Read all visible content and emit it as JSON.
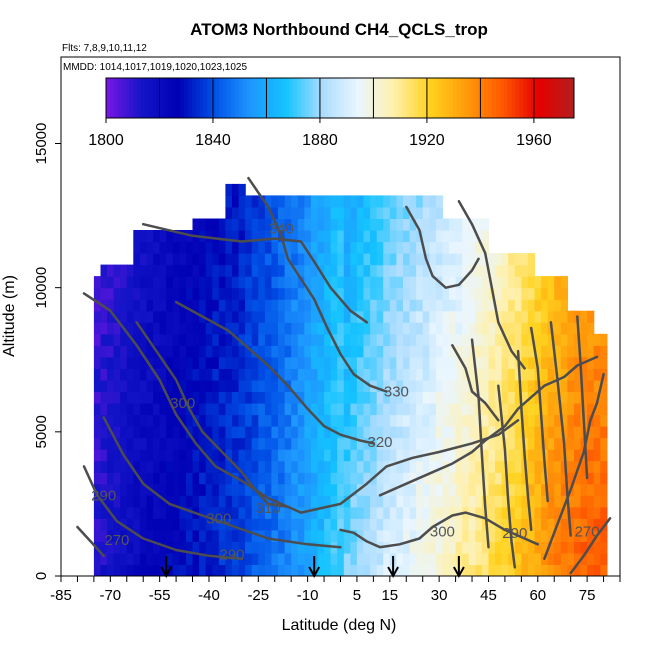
{
  "chart_data": {
    "type": "heatmap",
    "title": "ATOM3 Northbound CH4_QCLS_trop",
    "flights_label": "Flts: 7,8,9,10,11,12",
    "dates_label": "MMDD: 1014,1017,1019,1020,1023,1025",
    "xlabel": "Latitude (deg N)",
    "ylabel": "Altitude (m)",
    "xlim": [
      -85,
      85
    ],
    "ylim": [
      0,
      18000
    ],
    "x_ticks": [
      "-85",
      "-70",
      "-55",
      "-40",
      "-25",
      "-10",
      "5",
      "15",
      "30",
      "45",
      "60",
      "75"
    ],
    "x_tick_values": [
      -85,
      -70,
      -55,
      -40,
      -25,
      -10,
      5,
      15,
      30,
      45,
      60,
      75
    ],
    "y_ticks": [
      "0",
      "5000",
      "10000",
      "15000"
    ],
    "y_tick_values": [
      0,
      5000,
      10000,
      15000
    ],
    "colorbar": {
      "min": 1800,
      "max": 1975,
      "ticks": [
        "1800",
        "1840",
        "1880",
        "1920",
        "1960"
      ],
      "tick_values": [
        1800,
        1840,
        1880,
        1920,
        1960
      ],
      "colors": [
        "#7b16e6",
        "#1414c8",
        "#0000b4",
        "#0050e6",
        "#1e96ff",
        "#14c3ff",
        "#aadcff",
        "#eaf6ff",
        "#fff0aa",
        "#ffd21e",
        "#ff9b0a",
        "#ff5a00",
        "#e60000",
        "#b41e1e"
      ]
    },
    "contour_labels": [
      {
        "text": "340",
        "lat": -18,
        "alt": 12050
      },
      {
        "text": "330",
        "lat": 17,
        "alt": 6400
      },
      {
        "text": "320",
        "lat": 12,
        "alt": 4650
      },
      {
        "text": "310",
        "lat": -22,
        "alt": 2350
      },
      {
        "text": "300",
        "lat": -48,
        "alt": 6000
      },
      {
        "text": "300",
        "lat": -37,
        "alt": 2000
      },
      {
        "text": "300",
        "lat": 31,
        "alt": 1550
      },
      {
        "text": "290",
        "lat": -72,
        "alt": 2800
      },
      {
        "text": "290",
        "lat": -33,
        "alt": 750
      },
      {
        "text": "290",
        "lat": 53,
        "alt": 1500
      },
      {
        "text": "270",
        "lat": -68,
        "alt": 1250
      },
      {
        "text": "270",
        "lat": 75,
        "alt": 1550
      }
    ],
    "flight_markers_lat": [
      -53,
      -8,
      16,
      36
    ],
    "data_extent": {
      "lat_min": -75,
      "lat_max": 80,
      "alt_max": 13300
    },
    "field_profile": [
      {
        "lat": -75,
        "value": 1812
      },
      {
        "lat": -60,
        "value": 1822
      },
      {
        "lat": -45,
        "value": 1830
      },
      {
        "lat": -30,
        "value": 1838
      },
      {
        "lat": -15,
        "value": 1852
      },
      {
        "lat": -5,
        "value": 1866
      },
      {
        "lat": 5,
        "value": 1880
      },
      {
        "lat": 15,
        "value": 1890
      },
      {
        "lat": 25,
        "value": 1898
      },
      {
        "lat": 35,
        "value": 1906
      },
      {
        "lat": 45,
        "value": 1915
      },
      {
        "lat": 55,
        "value": 1926
      },
      {
        "lat": 65,
        "value": 1940
      },
      {
        "lat": 75,
        "value": 1948
      }
    ],
    "grid": false,
    "legend": "colorbar-top"
  }
}
